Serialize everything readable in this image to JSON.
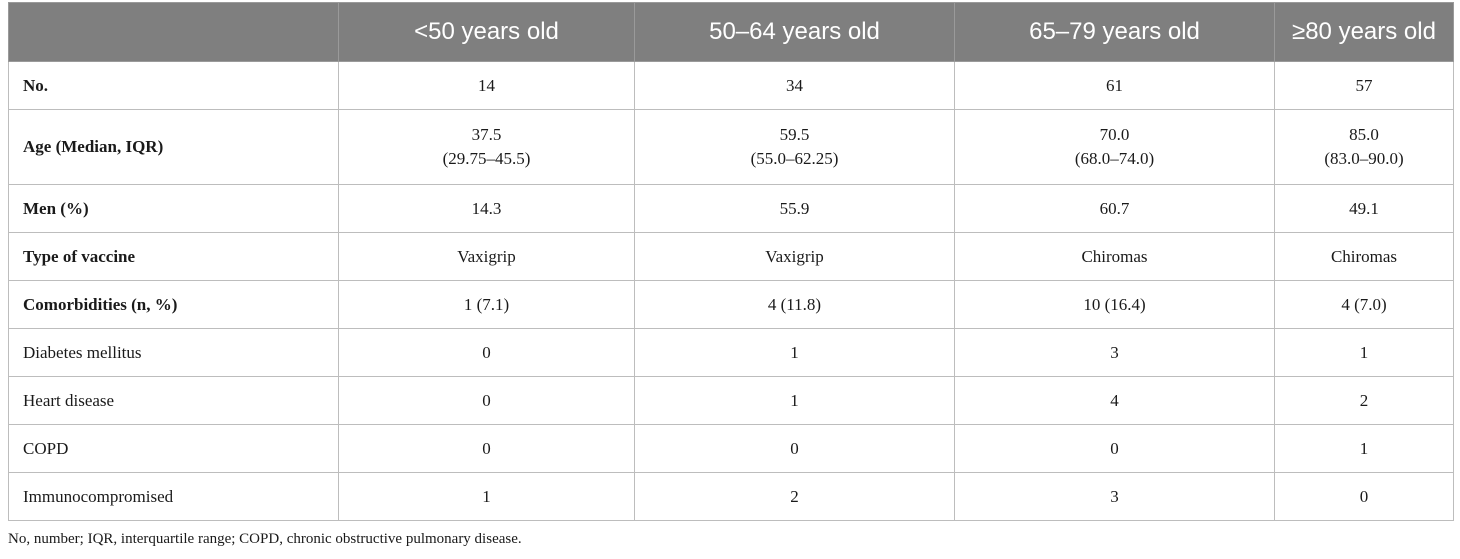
{
  "table": {
    "headers": [
      "",
      "<50 years old",
      "50–64 years old",
      "65–79 years old",
      "≥80 years old"
    ],
    "rows": [
      {
        "label": "No.",
        "bold": true,
        "values": [
          "14",
          "34",
          "61",
          "57"
        ]
      },
      {
        "label": "Age (Median, IQR)",
        "bold": true,
        "values": [
          "37.5",
          "59.5",
          "70.0",
          "85.0"
        ],
        "sub": [
          "(29.75–45.5)",
          "(55.0–62.25)",
          "(68.0–74.0)",
          "(83.0–90.0)"
        ]
      },
      {
        "label": "Men (%)",
        "bold": true,
        "values": [
          "14.3",
          "55.9",
          "60.7",
          "49.1"
        ]
      },
      {
        "label": "Type of vaccine",
        "bold": true,
        "values": [
          "Vaxigrip",
          "Vaxigrip",
          "Chiromas",
          "Chiromas"
        ]
      },
      {
        "label": "Comorbidities (n, %)",
        "bold": true,
        "values": [
          "1 (7.1)",
          "4 (11.8)",
          "10 (16.4)",
          "4 (7.0)"
        ]
      },
      {
        "label": "Diabetes mellitus",
        "bold": false,
        "values": [
          "0",
          "1",
          "3",
          "1"
        ]
      },
      {
        "label": "Heart disease",
        "bold": false,
        "values": [
          "0",
          "1",
          "4",
          "2"
        ]
      },
      {
        "label": "COPD",
        "bold": false,
        "values": [
          "0",
          "0",
          "0",
          "1"
        ]
      },
      {
        "label": "Immunocompromised",
        "bold": false,
        "values": [
          "1",
          "2",
          "3",
          "0"
        ]
      }
    ]
  },
  "footnote": "No, number; IQR, interquartile range; COPD, chronic obstructive pulmonary disease."
}
